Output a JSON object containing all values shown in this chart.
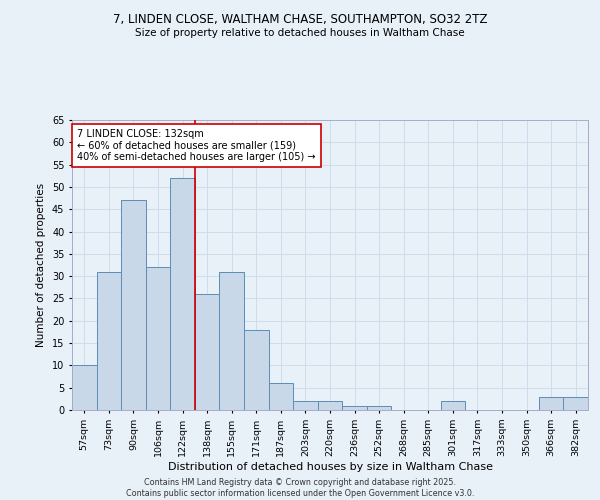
{
  "title_line1": "7, LINDEN CLOSE, WALTHAM CHASE, SOUTHAMPTON, SO32 2TZ",
  "title_line2": "Size of property relative to detached houses in Waltham Chase",
  "xlabel": "Distribution of detached houses by size in Waltham Chase",
  "ylabel": "Number of detached properties",
  "categories": [
    "57sqm",
    "73sqm",
    "90sqm",
    "106sqm",
    "122sqm",
    "138sqm",
    "155sqm",
    "171sqm",
    "187sqm",
    "203sqm",
    "220sqm",
    "236sqm",
    "252sqm",
    "268sqm",
    "285sqm",
    "301sqm",
    "317sqm",
    "333sqm",
    "350sqm",
    "366sqm",
    "382sqm"
  ],
  "values": [
    10,
    31,
    47,
    32,
    52,
    26,
    31,
    18,
    6,
    2,
    2,
    1,
    1,
    0,
    0,
    2,
    0,
    0,
    0,
    3,
    3
  ],
  "bar_color": "#c8d8e8",
  "bar_edge_color": "#5b8db8",
  "vline_x": 4.5,
  "vline_color": "#cc0000",
  "annotation_text": "7 LINDEN CLOSE: 132sqm\n← 60% of detached houses are smaller (159)\n40% of semi-detached houses are larger (105) →",
  "annotation_box_color": "#ffffff",
  "annotation_box_edge": "#cc0000",
  "ylim": [
    0,
    65
  ],
  "yticks": [
    0,
    5,
    10,
    15,
    20,
    25,
    30,
    35,
    40,
    45,
    50,
    55,
    60,
    65
  ],
  "grid_color": "#c8daea",
  "background_color": "#e8f0f8",
  "footer_line1": "Contains HM Land Registry data © Crown copyright and database right 2025.",
  "footer_line2": "Contains public sector information licensed under the Open Government Licence v3.0."
}
